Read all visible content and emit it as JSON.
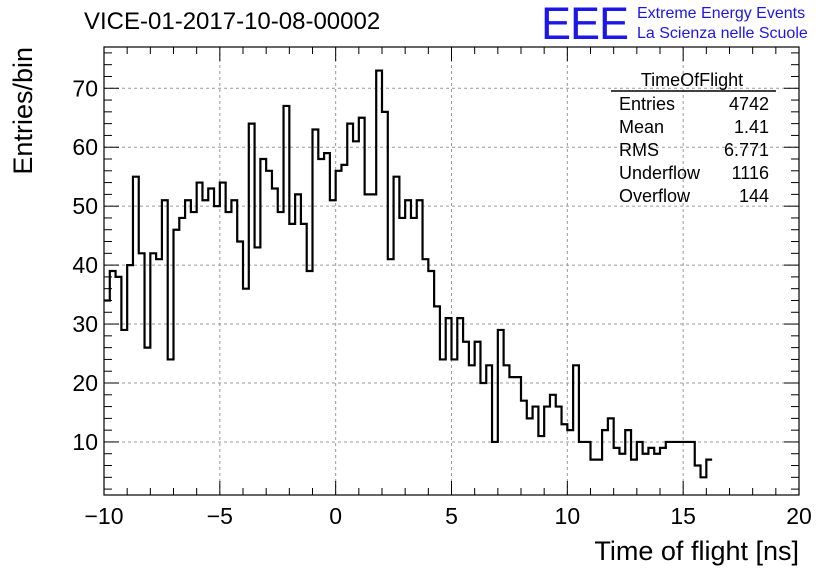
{
  "header": {
    "title": "VICE-01-2017-10-08-00002"
  },
  "brand": {
    "logo_text": "EEE",
    "line1": "Extreme Energy Events",
    "line2": "La Scienza nelle Scuole",
    "color": "#1c16e8"
  },
  "stats": {
    "title": "TimeOfFlight",
    "rows": [
      {
        "label": "Entries",
        "value": "4742"
      },
      {
        "label": "Mean",
        "value": "1.41"
      },
      {
        "label": "RMS",
        "value": "6.771"
      },
      {
        "label": "Underflow",
        "value": "1116"
      },
      {
        "label": "Overflow",
        "value": "144"
      }
    ]
  },
  "chart_data": {
    "type": "bar",
    "style": "step-histogram",
    "title": "",
    "xlabel": "Time of flight [ns]",
    "ylabel": "Entries/bin",
    "xlim": [
      -10,
      20
    ],
    "ylim": [
      1,
      77
    ],
    "bin_width": 0.25,
    "xticks": [
      -10,
      -5,
      0,
      5,
      10,
      15,
      20
    ],
    "xtick_labels": [
      "−10",
      "−5",
      "0",
      "5",
      "10",
      "15",
      "20"
    ],
    "yticks": [
      10,
      20,
      30,
      40,
      50,
      60,
      70
    ],
    "ytick_labels": [
      "10",
      "20",
      "30",
      "40",
      "50",
      "60",
      "70"
    ],
    "grid": true,
    "legend": "none",
    "line_color": "#000000",
    "values": [
      34,
      39,
      38,
      29,
      40,
      55,
      42,
      26,
      42,
      41,
      51,
      24,
      46,
      48,
      51,
      49,
      54,
      51,
      53,
      50,
      54,
      49,
      51,
      44,
      36,
      64,
      43,
      58,
      56,
      53,
      49,
      67,
      47,
      52,
      47,
      39,
      63,
      58,
      59,
      51,
      56,
      57,
      64,
      61,
      65,
      52,
      52,
      73,
      66,
      41,
      55,
      48,
      51,
      48,
      51,
      41,
      39,
      33,
      24,
      31,
      24,
      31,
      27,
      23,
      27,
      20,
      23,
      10,
      29,
      23,
      21,
      21,
      17,
      14,
      16,
      11,
      16,
      18,
      16,
      13,
      12,
      23,
      10,
      10,
      7,
      7,
      12,
      14,
      9,
      8,
      12,
      7,
      10,
      8,
      9,
      8,
      9,
      10,
      10,
      10,
      10,
      10,
      6,
      4,
      7
    ]
  }
}
